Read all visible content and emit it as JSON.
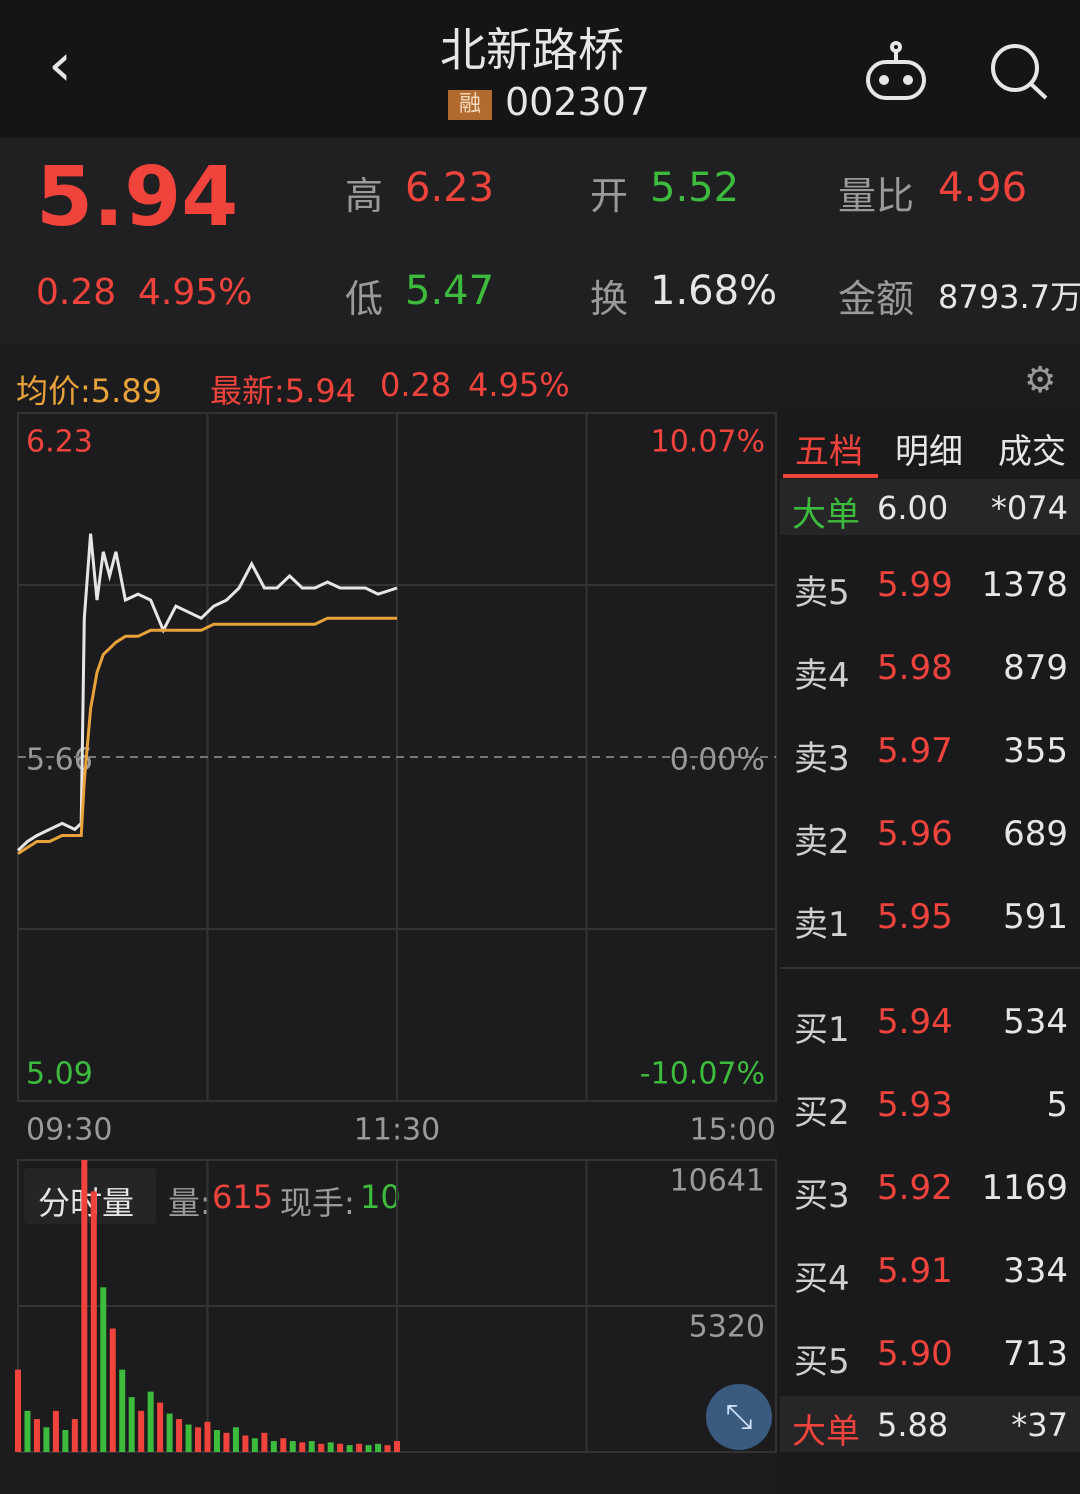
{
  "header": {
    "title": "北新路桥",
    "badge": "融",
    "code": "002307"
  },
  "quote": {
    "price": "5.94",
    "change": "0.28",
    "change_pct": "4.95%",
    "high_label": "高",
    "high": "6.23",
    "open_label": "开",
    "open": "5.52",
    "ratio_label": "量比",
    "ratio": "4.96",
    "low_label": "低",
    "low": "5.47",
    "turnover_label": "换",
    "turnover": "1.68%",
    "amount_label": "金额",
    "amount": "8793.7万"
  },
  "info_bar": {
    "avg": "均价:5.89",
    "latest": "最新:5.94",
    "change": "0.28",
    "pct": "4.95%"
  },
  "chart_data": [
    {
      "type": "line",
      "x": [
        0,
        3,
        6,
        10,
        14,
        18,
        20,
        21,
        23,
        25,
        27,
        29,
        31,
        34,
        38,
        42,
        46,
        50,
        54,
        58,
        62,
        66,
        70,
        74,
        78,
        82,
        86,
        90,
        94,
        98,
        102,
        106,
        110,
        114,
        120
      ],
      "xlim": [
        0,
        240
      ],
      "xticks": [
        {
          "value": 0,
          "label": "09:30"
        },
        {
          "value": 120,
          "label": "11:30"
        },
        {
          "value": 240,
          "label": "15:00"
        }
      ],
      "ylim": [
        5.09,
        6.23
      ],
      "yticks": [
        6.23,
        5.66,
        5.09
      ],
      "y2lim": [
        -10.07,
        10.07
      ],
      "y2ticks": [
        {
          "value": 10.07,
          "label": "10.07%"
        },
        {
          "value": 0,
          "label": "0.00%"
        },
        {
          "value": -10.07,
          "label": "-10.07%"
        }
      ],
      "series": [
        {
          "color": "#e6e6e6",
          "values": [
            5.505,
            5.52,
            5.53,
            5.54,
            5.55,
            5.54,
            5.55,
            5.89,
            6.03,
            5.92,
            6.0,
            5.96,
            6.0,
            5.92,
            5.93,
            5.92,
            5.87,
            5.91,
            5.9,
            5.89,
            5.91,
            5.92,
            5.94,
            5.98,
            5.94,
            5.94,
            5.96,
            5.94,
            5.94,
            5.95,
            5.94,
            5.94,
            5.94,
            5.93,
            5.94
          ]
        },
        {
          "color": "#e8a23a",
          "values": [
            5.5,
            5.51,
            5.52,
            5.52,
            5.53,
            5.53,
            5.53,
            5.62,
            5.74,
            5.8,
            5.83,
            5.84,
            5.85,
            5.86,
            5.86,
            5.87,
            5.87,
            5.87,
            5.87,
            5.87,
            5.88,
            5.88,
            5.88,
            5.88,
            5.88,
            5.88,
            5.88,
            5.88,
            5.88,
            5.89,
            5.89,
            5.89,
            5.89,
            5.89,
            5.89
          ]
        }
      ]
    },
    {
      "type": "bar",
      "title": "分时量",
      "vol_label": "量:",
      "vol": "615",
      "hand_label": "现手:",
      "hand": "10",
      "x": [
        0,
        3,
        6,
        9,
        12,
        15,
        18,
        21,
        24,
        27,
        30,
        33,
        36,
        39,
        42,
        45,
        48,
        51,
        54,
        57,
        60,
        63,
        66,
        69,
        72,
        75,
        78,
        81,
        84,
        87,
        90,
        93,
        96,
        99,
        102,
        105,
        108,
        111,
        114,
        117,
        120
      ],
      "xlim": [
        0,
        240
      ],
      "ylim": [
        0,
        10641
      ],
      "yticks": [
        10641,
        5320
      ],
      "values": [
        3000,
        1500,
        1200,
        900,
        1500,
        800,
        1200,
        10641,
        9500,
        6000,
        4500,
        3000,
        2000,
        1500,
        2200,
        1800,
        1400,
        1200,
        1000,
        900,
        1100,
        800,
        700,
        900,
        600,
        500,
        700,
        400,
        500,
        400,
        350,
        400,
        300,
        350,
        300,
        250,
        300,
        250,
        300,
        250,
        400
      ],
      "colors": [
        "#f0433c",
        "#3dbb3d",
        "#f0433c",
        "#3dbb3d",
        "#f0433c",
        "#3dbb3d",
        "#f0433c",
        "#f0433c",
        "#f0433c",
        "#3dbb3d",
        "#f0433c",
        "#3dbb3d",
        "#3dbb3d",
        "#f0433c",
        "#3dbb3d",
        "#f0433c",
        "#3dbb3d",
        "#f0433c",
        "#3dbb3d",
        "#f0433c",
        "#f0433c",
        "#3dbb3d",
        "#f0433c",
        "#3dbb3d",
        "#f0433c",
        "#3dbb3d",
        "#f0433c",
        "#3dbb3d",
        "#f0433c",
        "#3dbb3d",
        "#f0433c",
        "#3dbb3d",
        "#f0433c",
        "#3dbb3d",
        "#f0433c",
        "#3dbb3d",
        "#f0433c",
        "#3dbb3d",
        "#3dbb3d",
        "#f0433c",
        "#f0433c"
      ]
    }
  ],
  "order_book": {
    "tabs": [
      "五档",
      "明细",
      "成交"
    ],
    "big_top": {
      "label": "大单",
      "price": "6.00",
      "vol": "*074"
    },
    "asks": [
      {
        "label": "卖5",
        "price": "5.99",
        "vol": "1378"
      },
      {
        "label": "卖4",
        "price": "5.98",
        "vol": "879"
      },
      {
        "label": "卖3",
        "price": "5.97",
        "vol": "355"
      },
      {
        "label": "卖2",
        "price": "5.96",
        "vol": "689"
      },
      {
        "label": "卖1",
        "price": "5.95",
        "vol": "591"
      }
    ],
    "bids": [
      {
        "label": "买1",
        "price": "5.94",
        "vol": "534"
      },
      {
        "label": "买2",
        "price": "5.93",
        "vol": "5"
      },
      {
        "label": "买3",
        "price": "5.92",
        "vol": "1169"
      },
      {
        "label": "买4",
        "price": "5.91",
        "vol": "334"
      },
      {
        "label": "买5",
        "price": "5.90",
        "vol": "713"
      }
    ],
    "big_bottom": {
      "label": "大单",
      "price": "5.88",
      "vol": "*37"
    }
  }
}
